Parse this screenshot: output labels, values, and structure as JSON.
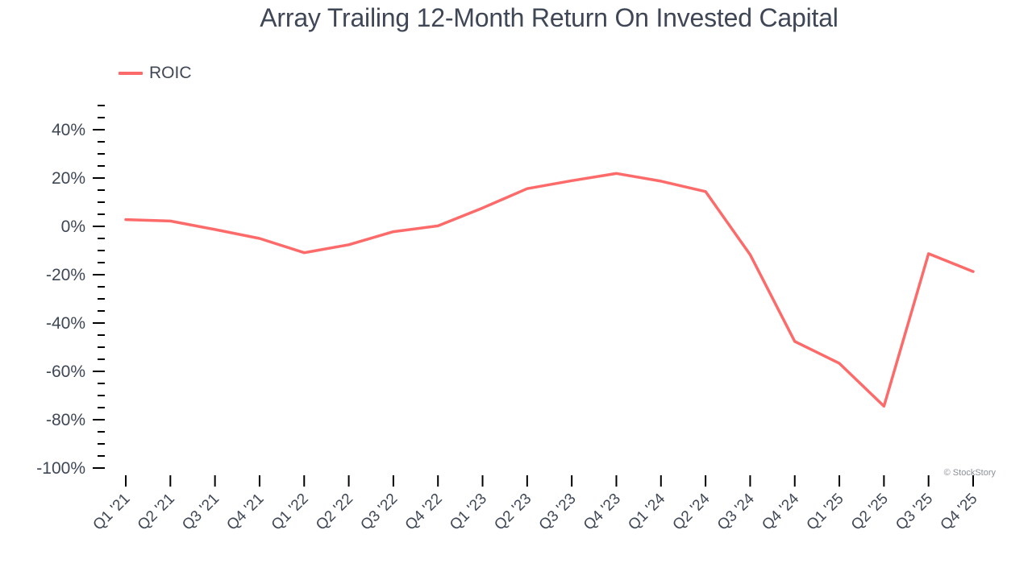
{
  "title": "Array Trailing 12-Month Return On Invested Capital",
  "legend": {
    "label": "ROIC",
    "color": "#fd6a6a"
  },
  "watermark": "© StockStory",
  "colors": {
    "line": "#fd6a6a",
    "text": "#3f4756",
    "axis": "#000000",
    "background": "#ffffff"
  },
  "chart_data": {
    "type": "line",
    "title": "Array Trailing 12-Month Return On Invested Capital",
    "xlabel": "",
    "ylabel": "",
    "categories": [
      "Q1 '21",
      "Q2 '21",
      "Q3 '21",
      "Q4 '21",
      "Q1 '22",
      "Q2 '22",
      "Q3 '22",
      "Q4 '22",
      "Q1 '23",
      "Q2 '23",
      "Q3 '23",
      "Q4 '23",
      "Q1 '24",
      "Q2 '24",
      "Q3 '24",
      "Q4 '24",
      "Q1 '25",
      "Q2 '25",
      "Q3 '25",
      "Q4 '25"
    ],
    "series": [
      {
        "name": "ROIC",
        "color": "#fd6a6a",
        "values": [
          2.8,
          2.2,
          -1.3,
          -5.0,
          -10.9,
          -7.6,
          -2.2,
          0.2,
          7.6,
          15.6,
          18.9,
          21.9,
          18.7,
          14.4,
          -11.7,
          -47.6,
          -56.7,
          -74.4,
          -11.3,
          -18.7
        ]
      }
    ],
    "ylim": [
      -100,
      50
    ],
    "yticks": [
      40,
      20,
      0,
      -20,
      -40,
      -60,
      -80,
      -100
    ],
    "ytick_labels": [
      "40%",
      "20%",
      "0%",
      "-20%",
      "-40%",
      "-60%",
      "-80%",
      "-100%"
    ],
    "minor_ytick_step": 5,
    "grid": false,
    "legend_position": "top-left"
  }
}
